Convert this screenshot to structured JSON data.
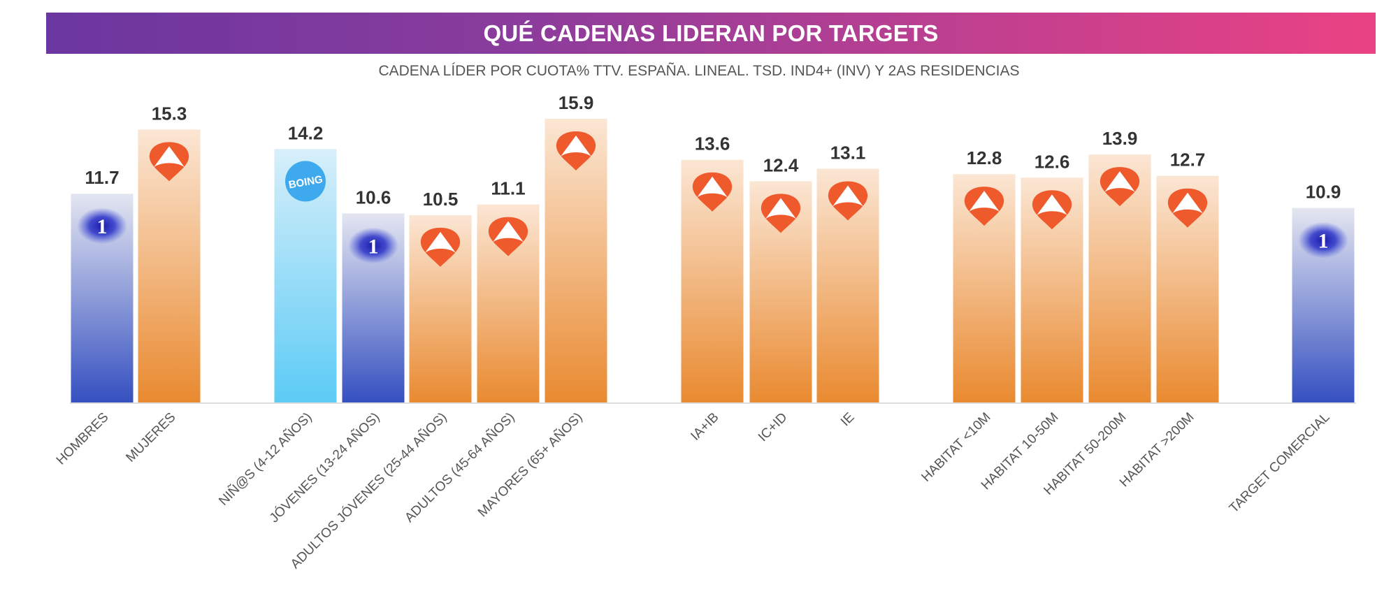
{
  "chart_data": {
    "type": "bar",
    "title": "QUÉ CADENAS LIDERAN POR TARGETS",
    "subtitle": "CADENA LÍDER POR CUOTA% TTV. ESPAÑA. LINEAL. TSD. IND4+ (INV) Y 2AS RESIDENCIAS",
    "xlabel": "",
    "ylabel": "",
    "ylim": [
      0,
      15.9
    ],
    "grid": false,
    "legend": "none",
    "categories": [
      "HOMBRES",
      "MUJERES",
      "NIÑ@S (4-12 AÑOS)",
      "JÓVENES (13-24 AÑOS)",
      "ADULTOS JÓVENES (25-44 AÑOS)",
      "ADULTOS (45-64 AÑOS)",
      "MAYORES (65+ AÑOS)",
      "IA+IB",
      "IC+ID",
      "IE",
      "HABITAT <10M",
      "HABITAT 10-50M",
      "HABITAT 50-200M",
      "HABITAT >200M",
      "TARGET COMERCIAL"
    ],
    "values": [
      11.7,
      15.3,
      14.2,
      10.6,
      10.5,
      11.1,
      15.9,
      13.6,
      12.4,
      13.1,
      12.8,
      12.6,
      13.9,
      12.7,
      10.9
    ],
    "data_labels": [
      "11.7",
      "15.3",
      "14.2",
      "10.6",
      "10.5",
      "11.1",
      "15.9",
      "13.6",
      "12.4",
      "13.1",
      "12.8",
      "12.6",
      "13.9",
      "12.7",
      "10.9"
    ],
    "leader_channel": [
      "la1",
      "antena3",
      "boing",
      "la1",
      "antena3",
      "antena3",
      "antena3",
      "antena3",
      "antena3",
      "antena3",
      "antena3",
      "antena3",
      "antena3",
      "antena3",
      "la1"
    ],
    "groups": [
      [
        0,
        1
      ],
      [
        2,
        3,
        4,
        5,
        6
      ],
      [
        7,
        8,
        9
      ],
      [
        10,
        11,
        12,
        13
      ],
      [
        14
      ]
    ]
  },
  "channels": {
    "la1": {
      "logo_text": "1",
      "icon": "la1-logo-icon",
      "color_top": "#e4e6f1",
      "color_bottom": "#3550c0"
    },
    "antena3": {
      "logo_text": "",
      "icon": "antena3-logo-icon",
      "color_top": "#fbe6d4",
      "color_bottom": "#e98a30"
    },
    "boing": {
      "logo_text": "BOING",
      "icon": "boing-logo-icon",
      "color_top": "#d7effa",
      "color_bottom": "#5ccbf5"
    }
  },
  "colors": {
    "banner_left": "#6b36a0",
    "banner_right": "#ea4283",
    "value_label": "#333333",
    "category_label": "#555555",
    "antena3_logo": "#ef5a2c",
    "boing_logo": "#3ea9ec"
  }
}
